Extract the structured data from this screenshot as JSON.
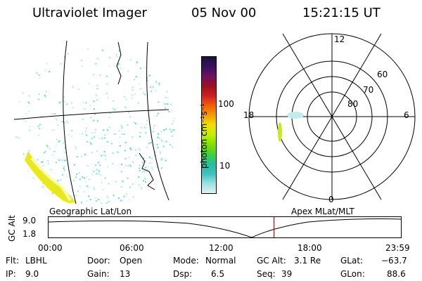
{
  "header": {
    "instrument": "Ultraviolet Imager",
    "date": "05 Nov 00",
    "time": "15:21:15 UT"
  },
  "colorbar": {
    "label": "photon cm⁻²s⁻¹",
    "ticks": [
      "100",
      "10"
    ],
    "colors": [
      "#1a1040",
      "#3a1060",
      "#701060",
      "#a01020",
      "#d02020",
      "#f06000",
      "#f0a000",
      "#f0e000",
      "#c0f000",
      "#80e000",
      "#40d040",
      "#20c0a0",
      "#40c0c0",
      "#a0e0e0",
      "#e0f0f0"
    ]
  },
  "polar": {
    "mlt_labels": {
      "top": "12",
      "left": "18",
      "right": "6",
      "bottom": "0"
    },
    "lat_labels": [
      "60",
      "70",
      "80"
    ]
  },
  "timeline": {
    "left_title": "Geographic Lat/Lon",
    "right_title": "Apex MLat/MLT",
    "axis_title": "GC Alt",
    "y_ticks": [
      "9.0",
      "1.8"
    ],
    "x_ticks": [
      "00:00",
      "06:00",
      "12:00",
      "18:00",
      "23:59"
    ],
    "current_marker_fraction": 0.64,
    "marker_color": "#e00000"
  },
  "info": {
    "flt_label": "Flt:",
    "flt_value": "LBHL",
    "ip_label": "IP:",
    "ip_value": "9.0",
    "door_label": "Door:",
    "door_value": "Open",
    "gain_label": "Gain:",
    "gain_value": "13",
    "mode_label": "Mode:",
    "mode_value": "Normal",
    "dsp_label": "Dsp:",
    "dsp_value": "6.5",
    "gcalt_label": "GC Alt:",
    "gcalt_value": "3.1 Re",
    "seq_label": "Seq:",
    "seq_value": "39",
    "glat_label": "GLat:",
    "glat_value": "−63.7",
    "glon_label": "GLon:",
    "glon_value": "88.6"
  }
}
